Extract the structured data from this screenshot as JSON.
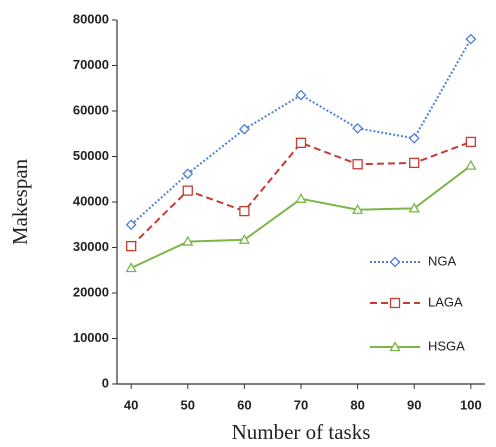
{
  "chart_data": {
    "type": "line",
    "x_label": "Number of tasks",
    "y_label": "Makespan",
    "x": [
      40,
      50,
      60,
      70,
      80,
      90,
      100
    ],
    "xlim": [
      37.5,
      102.5
    ],
    "xticks": [
      40,
      50,
      60,
      70,
      80,
      90,
      100
    ],
    "ylim": [
      0,
      80000
    ],
    "yticks": [
      0,
      10000,
      20000,
      30000,
      40000,
      50000,
      60000,
      70000,
      80000
    ],
    "grid": false,
    "legend": "lower right",
    "series": [
      {
        "name": "NGA",
        "color": "#4a7fd4",
        "linestyle": "dotted",
        "marker": "diamond",
        "values": [
          35000,
          46200,
          56000,
          63500,
          56200,
          54000,
          75800
        ]
      },
      {
        "name": "LAGA",
        "color": "#c63b32",
        "linestyle": "dashed",
        "marker": "square",
        "values": [
          30300,
          42500,
          38000,
          53000,
          48300,
          48600,
          53200
        ]
      },
      {
        "name": "HSGA",
        "color": "#7ab648",
        "linestyle": "solid",
        "marker": "triangle",
        "values": [
          25500,
          31300,
          31700,
          40700,
          38300,
          38600,
          48000
        ]
      }
    ]
  }
}
